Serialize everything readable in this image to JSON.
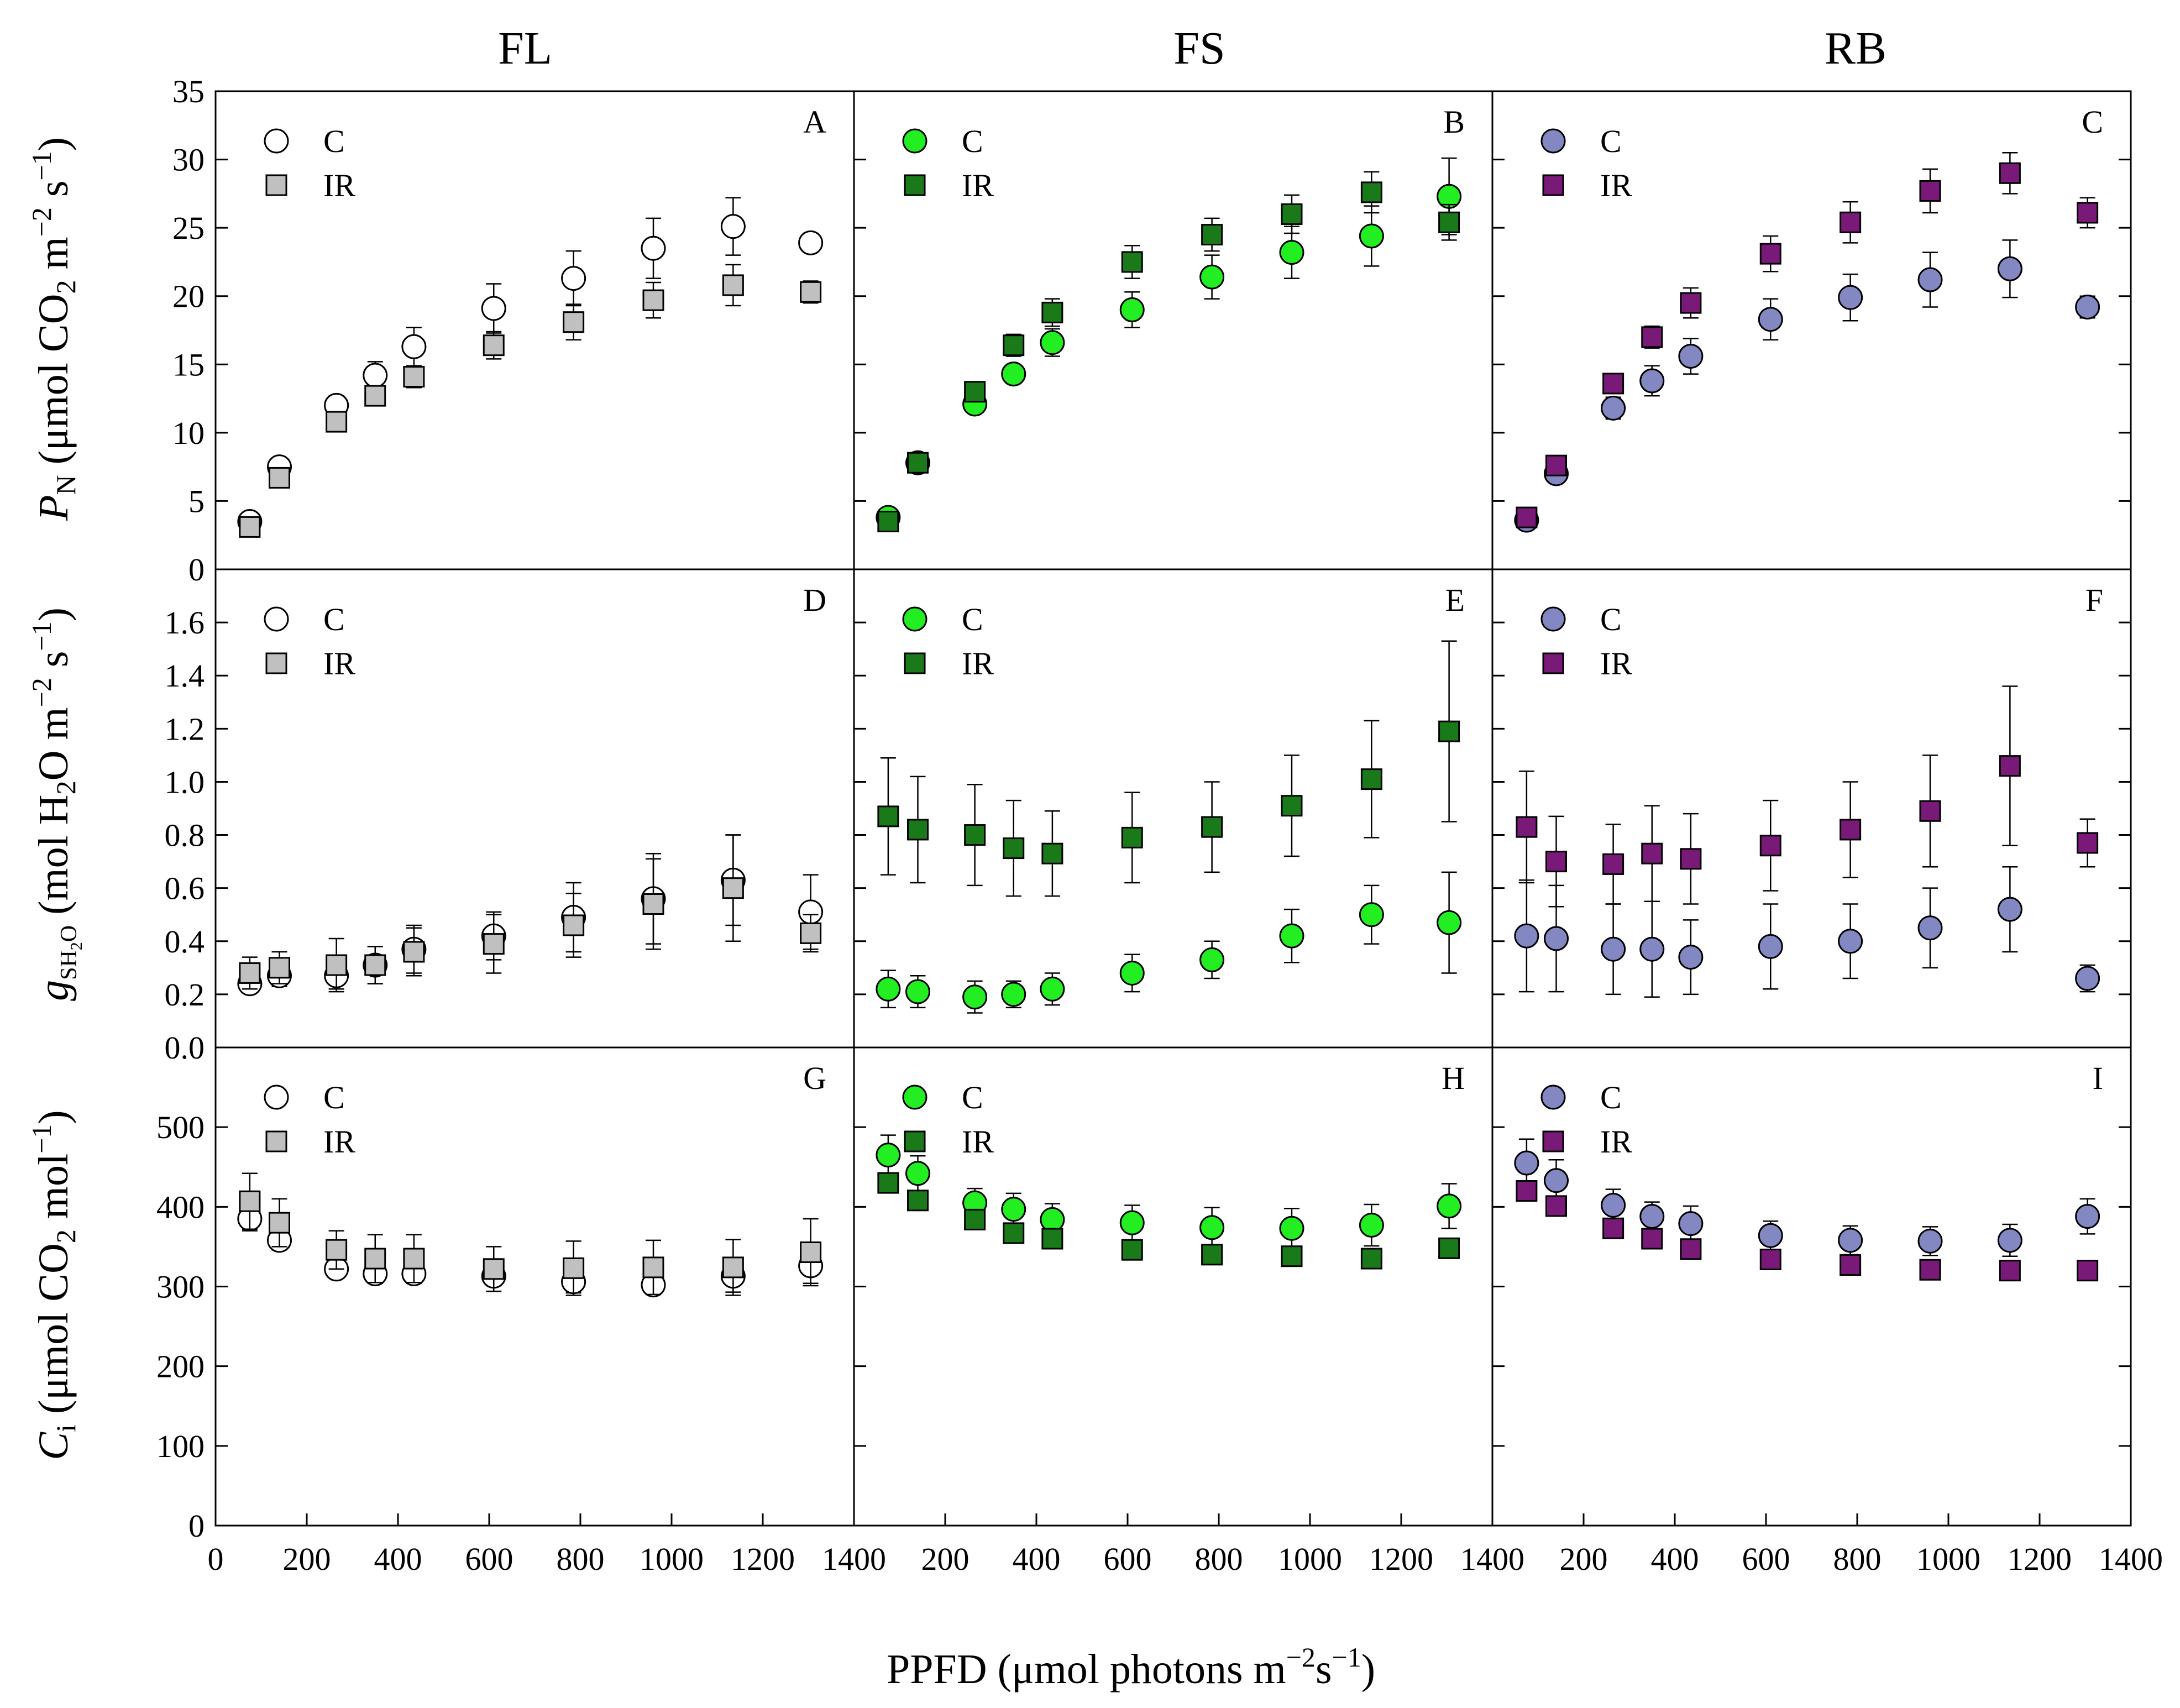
{
  "chart_data": {
    "type": "scatter",
    "figure_layout": "3x3 grid of panels with error bars",
    "column_titles": [
      "FL",
      "FS",
      "RB"
    ],
    "xlabel": "PPFD (µmol photons m⁻²s⁻¹)",
    "xlim": [
      0,
      1400
    ],
    "xticks": [
      0,
      200,
      400,
      600,
      800,
      1000,
      1200,
      1400
    ],
    "xtick_labels": [
      "0",
      "200",
      "400",
      "600",
      "800",
      "1000",
      "1200",
      "1400"
    ],
    "second_axis_xtick_labels": [
      "",
      "200",
      "400",
      "600",
      "800",
      "1000",
      "1200",
      "1400"
    ],
    "x": [
      75,
      140,
      265,
      350,
      435,
      610,
      785,
      960,
      1135,
      1305
    ],
    "rows": [
      {
        "ylabel": "PN (µmol CO2 m⁻² s⁻¹)",
        "ylim": [
          0,
          35
        ],
        "yticks": [
          0,
          5,
          10,
          15,
          20,
          25,
          30,
          35
        ],
        "ytick_labels": [
          "0",
          "5",
          "10",
          "15",
          "20",
          "25",
          "30",
          "35"
        ]
      },
      {
        "ylabel": "gsH2O (mol H2O m⁻² s⁻¹)",
        "ylim": [
          0,
          1.8
        ],
        "yticks": [
          0,
          0.2,
          0.4,
          0.6,
          0.8,
          1.0,
          1.2,
          1.4,
          1.6
        ],
        "ytick_labels": [
          "0.0",
          "0.2",
          "0.4",
          "0.6",
          "0.8",
          "1.0",
          "1.2",
          "1.4",
          "1.6"
        ]
      },
      {
        "ylabel": "Ci (µmol CO2 mol⁻¹)",
        "ylim": [
          0,
          600
        ],
        "yticks": [
          0,
          100,
          200,
          300,
          400,
          500
        ],
        "ytick_labels": [
          "0",
          "100",
          "200",
          "300",
          "400",
          "500"
        ]
      }
    ],
    "panels": [
      {
        "label": "A",
        "row": 0,
        "col": 0,
        "legend": [
          "C",
          "IR"
        ],
        "series": [
          {
            "name": "C",
            "marker": "circle",
            "color": "#ffffff",
            "values": [
              3.5,
              7.5,
              12.0,
              14.2,
              16.3,
              19.1,
              21.3,
              23.5,
              25.1,
              23.9
            ],
            "errors": [
              0.3,
              0.4,
              0.7,
              1.0,
              1.4,
              1.8,
              2.0,
              2.2,
              2.1,
              0.7
            ]
          },
          {
            "name": "IR",
            "marker": "square",
            "color": "#c0c0c0",
            "values": [
              3.1,
              6.7,
              10.8,
              12.7,
              14.1,
              16.4,
              18.1,
              19.7,
              20.8,
              20.3
            ],
            "errors": [
              0.3,
              0.4,
              0.6,
              0.7,
              0.8,
              1.0,
              1.3,
              1.3,
              1.5,
              0.8
            ]
          }
        ]
      },
      {
        "label": "B",
        "row": 0,
        "col": 1,
        "legend": [
          "C",
          "IR"
        ],
        "series": [
          {
            "name": "C",
            "marker": "circle",
            "color": "#22ee22",
            "values": [
              3.8,
              7.8,
              12.1,
              14.3,
              16.6,
              19.0,
              21.4,
              23.2,
              24.4,
              27.3
            ],
            "errors": [
              0.3,
              0.4,
              0.6,
              0.7,
              1.0,
              1.3,
              1.6,
              1.9,
              2.2,
              2.8
            ]
          },
          {
            "name": "IR",
            "marker": "square",
            "color": "#1a7a1a",
            "values": [
              3.5,
              7.8,
              13.0,
              16.4,
              18.8,
              22.5,
              24.5,
              26.0,
              27.6,
              25.4
            ],
            "errors": [
              0.3,
              0.3,
              0.7,
              0.8,
              1.0,
              1.2,
              1.2,
              1.4,
              1.5,
              1.3
            ]
          }
        ]
      },
      {
        "label": "C",
        "row": 0,
        "col": 2,
        "legend": [
          "C",
          "IR"
        ],
        "series": [
          {
            "name": "C",
            "marker": "circle",
            "color": "#8488c2",
            "values": [
              3.6,
              7.0,
              11.8,
              13.8,
              15.6,
              18.3,
              19.9,
              21.2,
              22.0,
              19.2
            ],
            "errors": [
              0.3,
              0.4,
              0.8,
              1.1,
              1.3,
              1.5,
              1.7,
              2.0,
              2.1,
              0.8
            ]
          },
          {
            "name": "IR",
            "marker": "square",
            "color": "#7a1a78",
            "values": [
              3.8,
              7.6,
              13.6,
              17.0,
              19.5,
              23.1,
              25.4,
              27.7,
              29.0,
              26.1
            ],
            "errors": [
              0.3,
              0.4,
              0.6,
              0.8,
              1.1,
              1.3,
              1.5,
              1.6,
              1.5,
              1.1
            ]
          }
        ]
      },
      {
        "label": "D",
        "row": 1,
        "col": 0,
        "legend": [
          "C",
          "IR"
        ],
        "series": [
          {
            "name": "C",
            "marker": "circle",
            "color": "#ffffff",
            "values": [
              0.24,
              0.27,
              0.27,
              0.31,
              0.37,
              0.42,
              0.49,
              0.56,
              0.63,
              0.51
            ],
            "errors": [
              0.03,
              0.04,
              0.05,
              0.07,
              0.09,
              0.09,
              0.13,
              0.17,
              0.17,
              0.14
            ]
          },
          {
            "name": "IR",
            "marker": "square",
            "color": "#c0c0c0",
            "values": [
              0.28,
              0.3,
              0.31,
              0.31,
              0.36,
              0.39,
              0.46,
              0.54,
              0.6,
              0.43
            ],
            "errors": [
              0.06,
              0.06,
              0.1,
              0.07,
              0.09,
              0.11,
              0.12,
              0.17,
              0.2,
              0.07
            ]
          }
        ]
      },
      {
        "label": "E",
        "row": 1,
        "col": 1,
        "legend": [
          "C",
          "IR"
        ],
        "series": [
          {
            "name": "C",
            "marker": "circle",
            "color": "#22ee22",
            "values": [
              0.22,
              0.21,
              0.19,
              0.2,
              0.22,
              0.28,
              0.33,
              0.42,
              0.5,
              0.47
            ],
            "errors": [
              0.07,
              0.06,
              0.06,
              0.05,
              0.06,
              0.07,
              0.07,
              0.1,
              0.11,
              0.19
            ]
          },
          {
            "name": "IR",
            "marker": "square",
            "color": "#1a7a1a",
            "values": [
              0.87,
              0.82,
              0.8,
              0.75,
              0.73,
              0.79,
              0.83,
              0.91,
              1.01,
              1.19
            ],
            "errors": [
              0.22,
              0.2,
              0.19,
              0.18,
              0.16,
              0.17,
              0.17,
              0.19,
              0.22,
              0.34
            ]
          }
        ]
      },
      {
        "label": "F",
        "row": 1,
        "col": 2,
        "legend": [
          "C",
          "IR"
        ],
        "series": [
          {
            "name": "C",
            "marker": "circle",
            "color": "#8488c2",
            "values": [
              0.42,
              0.41,
              0.37,
              0.37,
              0.34,
              0.38,
              0.4,
              0.45,
              0.52,
              0.26
            ],
            "errors": [
              0.21,
              0.2,
              0.17,
              0.18,
              0.14,
              0.16,
              0.14,
              0.15,
              0.16,
              0.05
            ]
          },
          {
            "name": "IR",
            "marker": "square",
            "color": "#7a1a78",
            "values": [
              0.83,
              0.7,
              0.69,
              0.73,
              0.71,
              0.76,
              0.82,
              0.89,
              1.06,
              0.77
            ],
            "errors": [
              0.21,
              0.17,
              0.15,
              0.18,
              0.17,
              0.17,
              0.18,
              0.21,
              0.3,
              0.09
            ]
          }
        ]
      },
      {
        "label": "G",
        "row": 2,
        "col": 0,
        "legend": [
          "C",
          "IR"
        ],
        "series": [
          {
            "name": "C",
            "marker": "circle",
            "color": "#ffffff",
            "values": [
              385,
              358,
              322,
              316,
              316,
              313,
              306,
              302,
              313,
              326
            ],
            "errors": [
              15,
              12,
              10,
              12,
              12,
              12,
              14,
              12,
              20,
              22
            ]
          },
          {
            "name": "IR",
            "marker": "square",
            "color": "#c0c0c0",
            "values": [
              407,
              380,
              346,
              335,
              335,
              322,
              323,
              324,
              324,
              343
            ],
            "errors": [
              35,
              30,
              24,
              30,
              30,
              28,
              34,
              34,
              35,
              42
            ]
          }
        ]
      },
      {
        "label": "H",
        "row": 2,
        "col": 1,
        "legend": [
          "C",
          "IR"
        ],
        "series": [
          {
            "name": "C",
            "marker": "circle",
            "color": "#22ee22",
            "values": [
              465,
              442,
              405,
              397,
              384,
              380,
              374,
              373,
              377,
              401
            ],
            "errors": [
              25,
              22,
              18,
              20,
              20,
              22,
              25,
              25,
              26,
              28
            ]
          },
          {
            "name": "IR",
            "marker": "square",
            "color": "#1a7a1a",
            "values": [
              430,
              408,
              384,
              367,
              360,
              346,
              340,
              338,
              335,
              348
            ],
            "errors": [
              8,
              6,
              6,
              5,
              5,
              5,
              8,
              8,
              6,
              10
            ]
          }
        ]
      },
      {
        "label": "I",
        "row": 2,
        "col": 2,
        "legend": [
          "C",
          "IR"
        ],
        "series": [
          {
            "name": "C",
            "marker": "circle",
            "color": "#8488c2",
            "values": [
              455,
              433,
              402,
              388,
              379,
              364,
              358,
              357,
              358,
              388
            ],
            "errors": [
              30,
              26,
              20,
              18,
              22,
              18,
              18,
              18,
              20,
              22
            ]
          },
          {
            "name": "IR",
            "marker": "square",
            "color": "#7a1a78",
            "values": [
              420,
              401,
              373,
              360,
              347,
              334,
              327,
              321,
              320,
              320
            ],
            "errors": [
              6,
              6,
              6,
              5,
              5,
              5,
              5,
              5,
              5,
              4
            ]
          }
        ]
      }
    ]
  }
}
